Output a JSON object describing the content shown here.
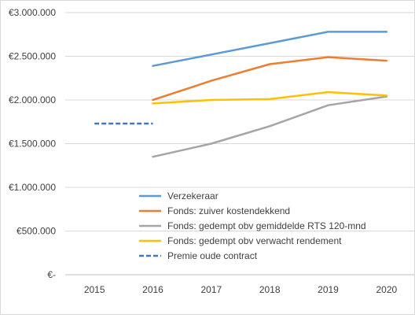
{
  "chart_data": {
    "type": "line",
    "x": [
      "2015",
      "2016",
      "2017",
      "2018",
      "2019",
      "2020"
    ],
    "ylim": [
      0,
      3000000
    ],
    "yticks": [
      0,
      500000,
      1000000,
      1500000,
      2000000,
      2500000,
      3000000
    ],
    "ytick_labels": [
      "€-",
      "€500.000",
      "€1.000.000",
      "€1.500.000",
      "€2.000.000",
      "€2.500.000",
      "€3.000.000"
    ],
    "grid": "horizontal",
    "legend_position": "bottom-right",
    "series": [
      {
        "name": "Verzekeraar",
        "color": "#5b9bd5",
        "dash": "solid",
        "values": [
          null,
          2390000,
          2520000,
          2650000,
          2780000,
          2780000
        ]
      },
      {
        "name": "Fonds: zuiver kostendekkend",
        "color": "#ed7d31",
        "dash": "solid",
        "values": [
          null,
          2000000,
          2220000,
          2410000,
          2490000,
          2450000
        ]
      },
      {
        "name": "Fonds: gedempt obv gemiddelde RTS 120-mnd",
        "color": "#a5a5a5",
        "dash": "solid",
        "values": [
          null,
          1350000,
          1500000,
          1700000,
          1940000,
          2040000
        ]
      },
      {
        "name": "Fonds: gedempt obv verwacht rendement",
        "color": "#ffc000",
        "dash": "solid",
        "values": [
          null,
          1960000,
          2000000,
          2010000,
          2090000,
          2050000
        ]
      },
      {
        "name": "Premie oude contract",
        "color": "#4472c4",
        "dash": "dashed",
        "values": [
          1730000,
          1730000,
          null,
          null,
          null,
          null
        ]
      }
    ]
  }
}
